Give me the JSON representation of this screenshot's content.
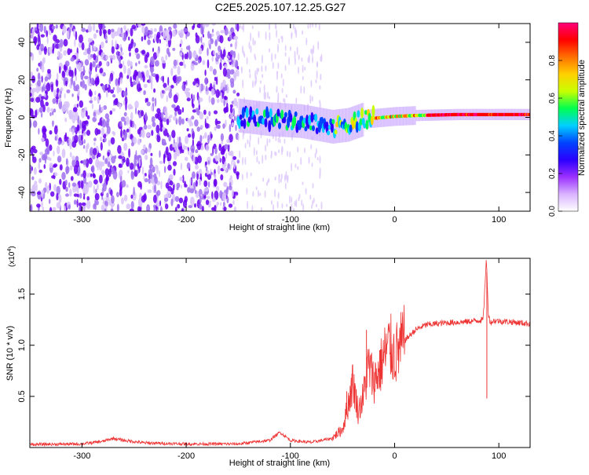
{
  "page_title": "C2E5.2025.107.12.25.G27",
  "chart_data": [
    {
      "type": "heatmap",
      "title": "C2E5.2025.107.12.25.G27",
      "xlabel": "Height of straight line (km)",
      "ylabel": "Frequency (Hz)",
      "xlim": [
        -350,
        130
      ],
      "ylim": [
        -50,
        50
      ],
      "xticks": [
        -300,
        -200,
        -100,
        0,
        100
      ],
      "yticks": [
        -40,
        -20,
        0,
        20,
        40
      ],
      "colorbar": {
        "label": "Normalized spectral amplitude",
        "range": [
          0.0,
          1.0
        ],
        "ticks": [
          "0.0",
          "0.2",
          "0.4",
          "0.6",
          "0.8"
        ],
        "colors": [
          "#ffffff",
          "#d9b3ff",
          "#9b30ff",
          "#2b00ff",
          "#0044ff",
          "#00d0ff",
          "#00ff50",
          "#c8ff00",
          "#ffd000",
          "#ff7000",
          "#ff0000",
          "#ff007a"
        ]
      },
      "ridge": {
        "x": [
          -150,
          -120,
          -90,
          -60,
          -45,
          -30,
          -10,
          0,
          20,
          60,
          90,
          130
        ],
        "y": [
          1,
          -1,
          -2,
          -5,
          -4,
          -1,
          0,
          0.5,
          1,
          1.5,
          1.5,
          1.5
        ]
      },
      "noise_region_x": [
        -350,
        -150
      ]
    },
    {
      "type": "line",
      "xlabel": "Height of straight line (km)",
      "ylabel": "SNR (10 * v/v)",
      "yscale_label": "(x10",
      "yscale_exp": "4",
      "yscale_close": ")",
      "xlim": [
        -350,
        130
      ],
      "ylim": [
        0,
        18500
      ],
      "xticks": [
        -300,
        -200,
        -100,
        0,
        100
      ],
      "yticks": [
        5000,
        10000,
        15000
      ],
      "ytick_labels": [
        "0.5",
        "1.0",
        "1.5"
      ],
      "color": "#ee3333",
      "x": [
        -350,
        -300,
        -280,
        -270,
        -260,
        -240,
        -200,
        -150,
        -120,
        -110,
        -100,
        -80,
        -60,
        -50,
        -45,
        -40,
        -35,
        -30,
        -25,
        -20,
        -15,
        -10,
        -5,
        0,
        10,
        20,
        30,
        50,
        70,
        85,
        88,
        90,
        92,
        95,
        110,
        130
      ],
      "y": [
        300,
        350,
        600,
        900,
        700,
        450,
        350,
        350,
        700,
        1500,
        700,
        500,
        900,
        1800,
        4000,
        6500,
        3500,
        5000,
        8000,
        6500,
        7500,
        9000,
        10000,
        9000,
        10500,
        11500,
        12000,
        12200,
        12300,
        12500,
        18500,
        13000,
        12200,
        12400,
        12300,
        12100
      ],
      "spikes": [
        {
          "x": -46,
          "y": 5500
        },
        {
          "x": -41,
          "y": 7200
        },
        {
          "x": -27,
          "y": 11500
        },
        {
          "x": -14,
          "y": 9500
        },
        {
          "x": 88,
          "y": 18500
        },
        {
          "x": 88.5,
          "y": 4800
        }
      ]
    }
  ]
}
